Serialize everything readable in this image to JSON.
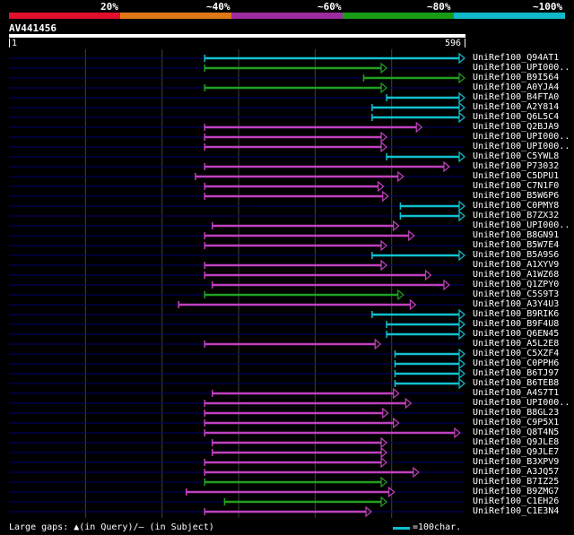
{
  "legend": {
    "labels": [
      "20%",
      "~40%",
      "~60%",
      "~80%",
      "~100%"
    ],
    "colors": [
      "#e0102c",
      "#e07818",
      "#9c2ca0",
      "#189c18",
      "#10b8c8"
    ]
  },
  "query": {
    "name": "AV441456",
    "start": "1",
    "end": "596",
    "length": 596
  },
  "colors": {
    "pink": "#c040c0",
    "green": "#20a020",
    "cyan": "#10c0d0",
    "guide": "#000070",
    "grid": "#404040"
  },
  "hits": [
    {
      "id": "UniRef100_Q94AT1",
      "color": "cyan",
      "s": 256,
      "e": 596
    },
    {
      "id": "UniRef100_UPI000..",
      "color": "green",
      "s": 256,
      "e": 494
    },
    {
      "id": "UniRef100_B9I564",
      "color": "green",
      "s": 464,
      "e": 596
    },
    {
      "id": "UniRef100_A0YJA4",
      "color": "green",
      "s": 256,
      "e": 494
    },
    {
      "id": "UniRef100_B4FTA0",
      "color": "cyan",
      "s": 494,
      "e": 596
    },
    {
      "id": "UniRef100_A2Y814",
      "color": "cyan",
      "s": 475,
      "e": 596
    },
    {
      "id": "UniRef100_Q6L5C4",
      "color": "cyan",
      "s": 475,
      "e": 596
    },
    {
      "id": "UniRef100_Q2BJA9",
      "color": "pink",
      "s": 256,
      "e": 540
    },
    {
      "id": "UniRef100_UPI000..",
      "color": "pink",
      "s": 256,
      "e": 494
    },
    {
      "id": "UniRef100_UPI000..",
      "color": "pink",
      "s": 256,
      "e": 494
    },
    {
      "id": "UniRef100_C5YWL8",
      "color": "cyan",
      "s": 494,
      "e": 596
    },
    {
      "id": "UniRef100_P73032",
      "color": "pink",
      "s": 256,
      "e": 576
    },
    {
      "id": "UniRef100_C5DPU1",
      "color": "pink",
      "s": 244,
      "e": 516
    },
    {
      "id": "UniRef100_C7N1F0",
      "color": "pink",
      "s": 256,
      "e": 490
    },
    {
      "id": "UniRef100_B5W6P6",
      "color": "pink",
      "s": 256,
      "e": 496
    },
    {
      "id": "UniRef100_C0PMY8",
      "color": "cyan",
      "s": 512,
      "e": 596
    },
    {
      "id": "UniRef100_B7ZX32",
      "color": "cyan",
      "s": 512,
      "e": 596
    },
    {
      "id": "UniRef100_UPI000..",
      "color": "pink",
      "s": 266,
      "e": 510
    },
    {
      "id": "UniRef100_B8GN91",
      "color": "pink",
      "s": 256,
      "e": 530
    },
    {
      "id": "UniRef100_B5W7E4",
      "color": "pink",
      "s": 256,
      "e": 494
    },
    {
      "id": "UniRef100_B5A9S6",
      "color": "cyan",
      "s": 475,
      "e": 596
    },
    {
      "id": "UniRef100_A1XYV9",
      "color": "pink",
      "s": 256,
      "e": 494
    },
    {
      "id": "UniRef100_A1WZ68",
      "color": "pink",
      "s": 256,
      "e": 552
    },
    {
      "id": "UniRef100_Q1ZPY0",
      "color": "pink",
      "s": 266,
      "e": 576
    },
    {
      "id": "UniRef100_C5S9T3",
      "color": "green",
      "s": 256,
      "e": 516
    },
    {
      "id": "UniRef100_A3Y4U3",
      "color": "pink",
      "s": 222,
      "e": 532
    },
    {
      "id": "UniRef100_B9RIK6",
      "color": "cyan",
      "s": 475,
      "e": 596
    },
    {
      "id": "UniRef100_B9F4U8",
      "color": "cyan",
      "s": 494,
      "e": 596
    },
    {
      "id": "UniRef100_Q6EN45",
      "color": "cyan",
      "s": 494,
      "e": 596
    },
    {
      "id": "UniRef100_A5L2E8",
      "color": "pink",
      "s": 256,
      "e": 486
    },
    {
      "id": "UniRef100_C5XZF4",
      "color": "cyan",
      "s": 505,
      "e": 596
    },
    {
      "id": "UniRef100_C0PPH6",
      "color": "cyan",
      "s": 505,
      "e": 596
    },
    {
      "id": "UniRef100_B6TJ97",
      "color": "cyan",
      "s": 505,
      "e": 596
    },
    {
      "id": "UniRef100_B6TEB8",
      "color": "cyan",
      "s": 505,
      "e": 596
    },
    {
      "id": "UniRef100_A4S7T1",
      "color": "pink",
      "s": 266,
      "e": 510
    },
    {
      "id": "UniRef100_UPI000..",
      "color": "pink",
      "s": 256,
      "e": 526
    },
    {
      "id": "UniRef100_B8GL23",
      "color": "pink",
      "s": 256,
      "e": 496
    },
    {
      "id": "UniRef100_C9P5X1",
      "color": "pink",
      "s": 256,
      "e": 510
    },
    {
      "id": "UniRef100_Q8T4N5",
      "color": "pink",
      "s": 256,
      "e": 590
    },
    {
      "id": "UniRef100_Q9JLE8",
      "color": "pink",
      "s": 266,
      "e": 494
    },
    {
      "id": "UniRef100_Q9JLE7",
      "color": "pink",
      "s": 266,
      "e": 494
    },
    {
      "id": "UniRef100_B3XPV9",
      "color": "pink",
      "s": 256,
      "e": 494
    },
    {
      "id": "UniRef100_A3JQ57",
      "color": "pink",
      "s": 256,
      "e": 536
    },
    {
      "id": "UniRef100_B7IZ25",
      "color": "green",
      "s": 256,
      "e": 494
    },
    {
      "id": "UniRef100_B9ZMG7",
      "color": "pink",
      "s": 232,
      "e": 504
    },
    {
      "id": "UniRef100_C1EH26",
      "color": "green",
      "s": 282,
      "e": 494
    },
    {
      "id": "UniRef100_C1E3N4",
      "color": "pink",
      "s": 256,
      "e": 474
    }
  ],
  "footer": {
    "large_gaps": "Large gaps: ▲(in Query)/– (in Subject)",
    "scale": "=100char."
  }
}
